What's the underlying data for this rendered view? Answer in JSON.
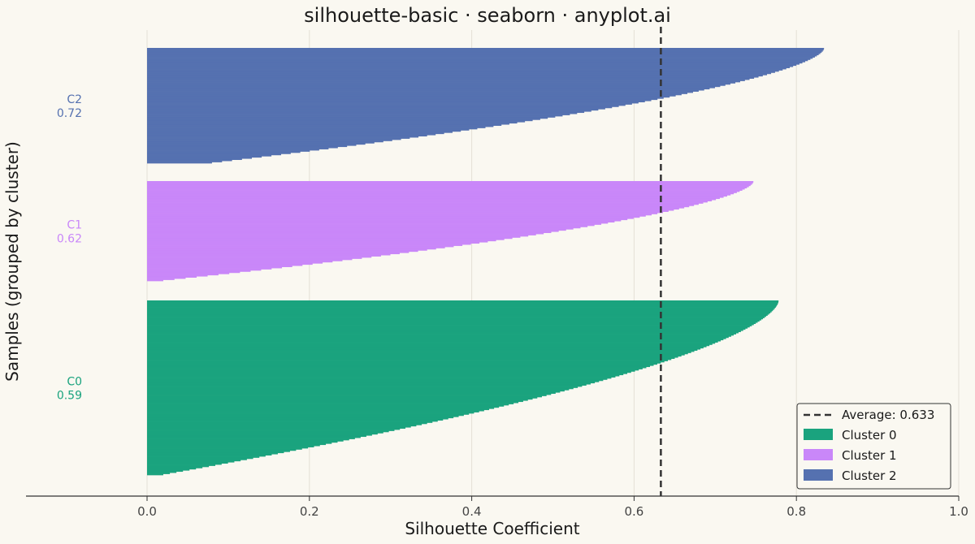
{
  "chart_data": {
    "type": "bar",
    "orientation": "horizontal",
    "title": "silhouette-basic · seaborn · anyplot.ai",
    "xlabel": "Silhouette Coefficient",
    "ylabel": "Samples (grouped by cluster)",
    "xlim": [
      -0.15,
      1.0
    ],
    "x_ticks": [
      "0.0",
      "0.2",
      "0.4",
      "0.6",
      "0.8",
      "1.0"
    ],
    "grid": "vertical",
    "legend_position": "lower-right",
    "average": {
      "value": 0.633,
      "label": "Average: 0.633",
      "color": "#333333"
    },
    "clusters": [
      {
        "name": "Cluster 0",
        "label": "C0",
        "mean_label": "0.59",
        "color": "#1AA37E",
        "count": 150,
        "max": 0.778,
        "min": 0.02
      },
      {
        "name": "Cluster 1",
        "label": "C1",
        "mean_label": "0.62",
        "color": "#C987F9",
        "count": 85,
        "max": 0.747,
        "min": 0.02
      },
      {
        "name": "Cluster 2",
        "label": "C2",
        "mean_label": "0.72",
        "color": "#5571B0",
        "count": 98,
        "max": 0.834,
        "min": 0.08
      }
    ]
  }
}
